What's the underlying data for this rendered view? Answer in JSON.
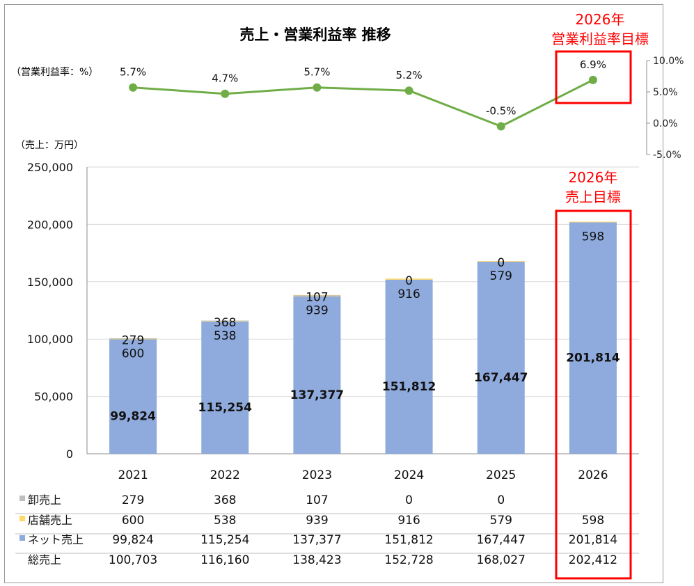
{
  "chart_data": [
    {
      "type": "line",
      "title": "売上・営業利益率 推移",
      "ylabel": "（営業利益率：%）",
      "x": [
        "2021",
        "2022",
        "2023",
        "2024",
        "2025",
        "2026"
      ],
      "series": [
        {
          "values": [
            5.7,
            4.7,
            5.7,
            5.2,
            -0.5,
            6.9
          ]
        }
      ],
      "data_labels": [
        "5.7%",
        "4.7%",
        "5.7%",
        "5.2%",
        "-0.5%",
        "6.9%"
      ],
      "ylim": [
        -5,
        10
      ],
      "yticks": [
        10,
        5,
        0,
        -5
      ],
      "ytick_labels": [
        "10.0%",
        "5.0%",
        "0.0%",
        "-5.0%"
      ],
      "annotation": [
        "2026年",
        "営業利益率目標"
      ],
      "color": "#70ad47"
    },
    {
      "type": "bar",
      "stacked": true,
      "ylabel": "（売上：万円）",
      "categories": [
        "2021",
        "2022",
        "2023",
        "2024",
        "2025",
        "2026"
      ],
      "series": [
        {
          "name": "ネット売上",
          "values": [
            99824,
            115254,
            137377,
            151812,
            167447,
            201814
          ],
          "labels": [
            "99,824",
            "115,254",
            "137,377",
            "151,812",
            "167,447",
            "201,814"
          ],
          "color": "#8faadc"
        },
        {
          "name": "店舗売上",
          "values": [
            600,
            538,
            939,
            916,
            579,
            598
          ],
          "labels": [
            "600",
            "538",
            "939",
            "916",
            "579",
            "598"
          ],
          "color": "#ffd966"
        },
        {
          "name": "卸売上",
          "values": [
            279,
            368,
            107,
            0,
            0,
            null
          ],
          "labels": [
            "279",
            "368",
            "107",
            "0",
            "0",
            ""
          ],
          "color": "#bfbfbf"
        }
      ],
      "ylim": [
        0,
        250000
      ],
      "yticks": [
        0,
        50000,
        100000,
        150000,
        200000,
        250000
      ],
      "ytick_labels": [
        "0",
        "50,000",
        "100,000",
        "150,000",
        "200,000",
        "250,000"
      ],
      "annotation": [
        "2026年",
        "売上目標"
      ],
      "grid": true
    },
    {
      "type": "table",
      "columns": [
        "2021",
        "2022",
        "2023",
        "2024",
        "2025",
        "2026"
      ],
      "rows": [
        {
          "label": "卸売上",
          "color": "#bfbfbf",
          "cells": [
            "279",
            "368",
            "107",
            "0",
            "0",
            ""
          ]
        },
        {
          "label": "店舗売上",
          "color": "#ffd966",
          "cells": [
            "600",
            "538",
            "939",
            "916",
            "579",
            "598"
          ]
        },
        {
          "label": "ネット売上",
          "color": "#8faadc",
          "cells": [
            "99,824",
            "115,254",
            "137,377",
            "151,812",
            "167,447",
            "201,814"
          ]
        },
        {
          "label": "総売上",
          "color": null,
          "cells": [
            "100,703",
            "116,160",
            "138,423",
            "152,728",
            "168,027",
            "202,412"
          ]
        }
      ]
    }
  ],
  "highlight_color": "#ff0000"
}
